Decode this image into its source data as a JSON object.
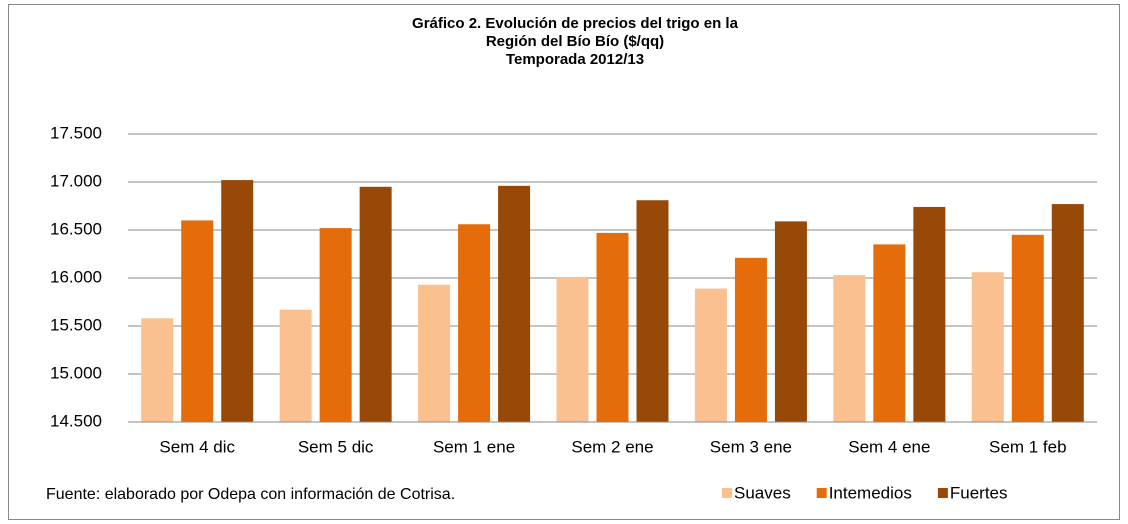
{
  "chart_data": {
    "type": "bar",
    "title": [
      "Gráfico 2. Evolución de precios del trigo en la",
      "Región del Bío Bío ($/qq)",
      "Temporada 2012/13"
    ],
    "source": "Fuente: elaborado por Odepa con información de Cotrisa.",
    "categories": [
      "Sem 4 dic",
      "Sem 5 dic",
      "Sem 1 ene",
      "Sem 2 ene",
      "Sem 3 ene",
      "Sem 4 ene",
      "Sem 1 feb"
    ],
    "series": [
      {
        "name": "Suaves",
        "color": "#fac090",
        "values": [
          15580,
          15670,
          15930,
          16010,
          15890,
          16030,
          16060
        ]
      },
      {
        "name": "Intemedios",
        "color": "#e46c0a",
        "values": [
          16600,
          16520,
          16560,
          16470,
          16210,
          16350,
          16450
        ]
      },
      {
        "name": "Fuertes",
        "color": "#984807",
        "values": [
          17020,
          16950,
          16960,
          16810,
          16590,
          16740,
          16770
        ]
      }
    ],
    "ylim": [
      14500,
      17500
    ],
    "yticks": [
      {
        "value": 14500,
        "label": "14.500"
      },
      {
        "value": 15000,
        "label": "15.000"
      },
      {
        "value": 15500,
        "label": "15.500"
      },
      {
        "value": 16000,
        "label": "16.000"
      },
      {
        "value": 16500,
        "label": "16.500"
      },
      {
        "value": 17000,
        "label": "17.000"
      },
      {
        "value": 17500,
        "label": "17.500"
      }
    ],
    "grid": true
  }
}
